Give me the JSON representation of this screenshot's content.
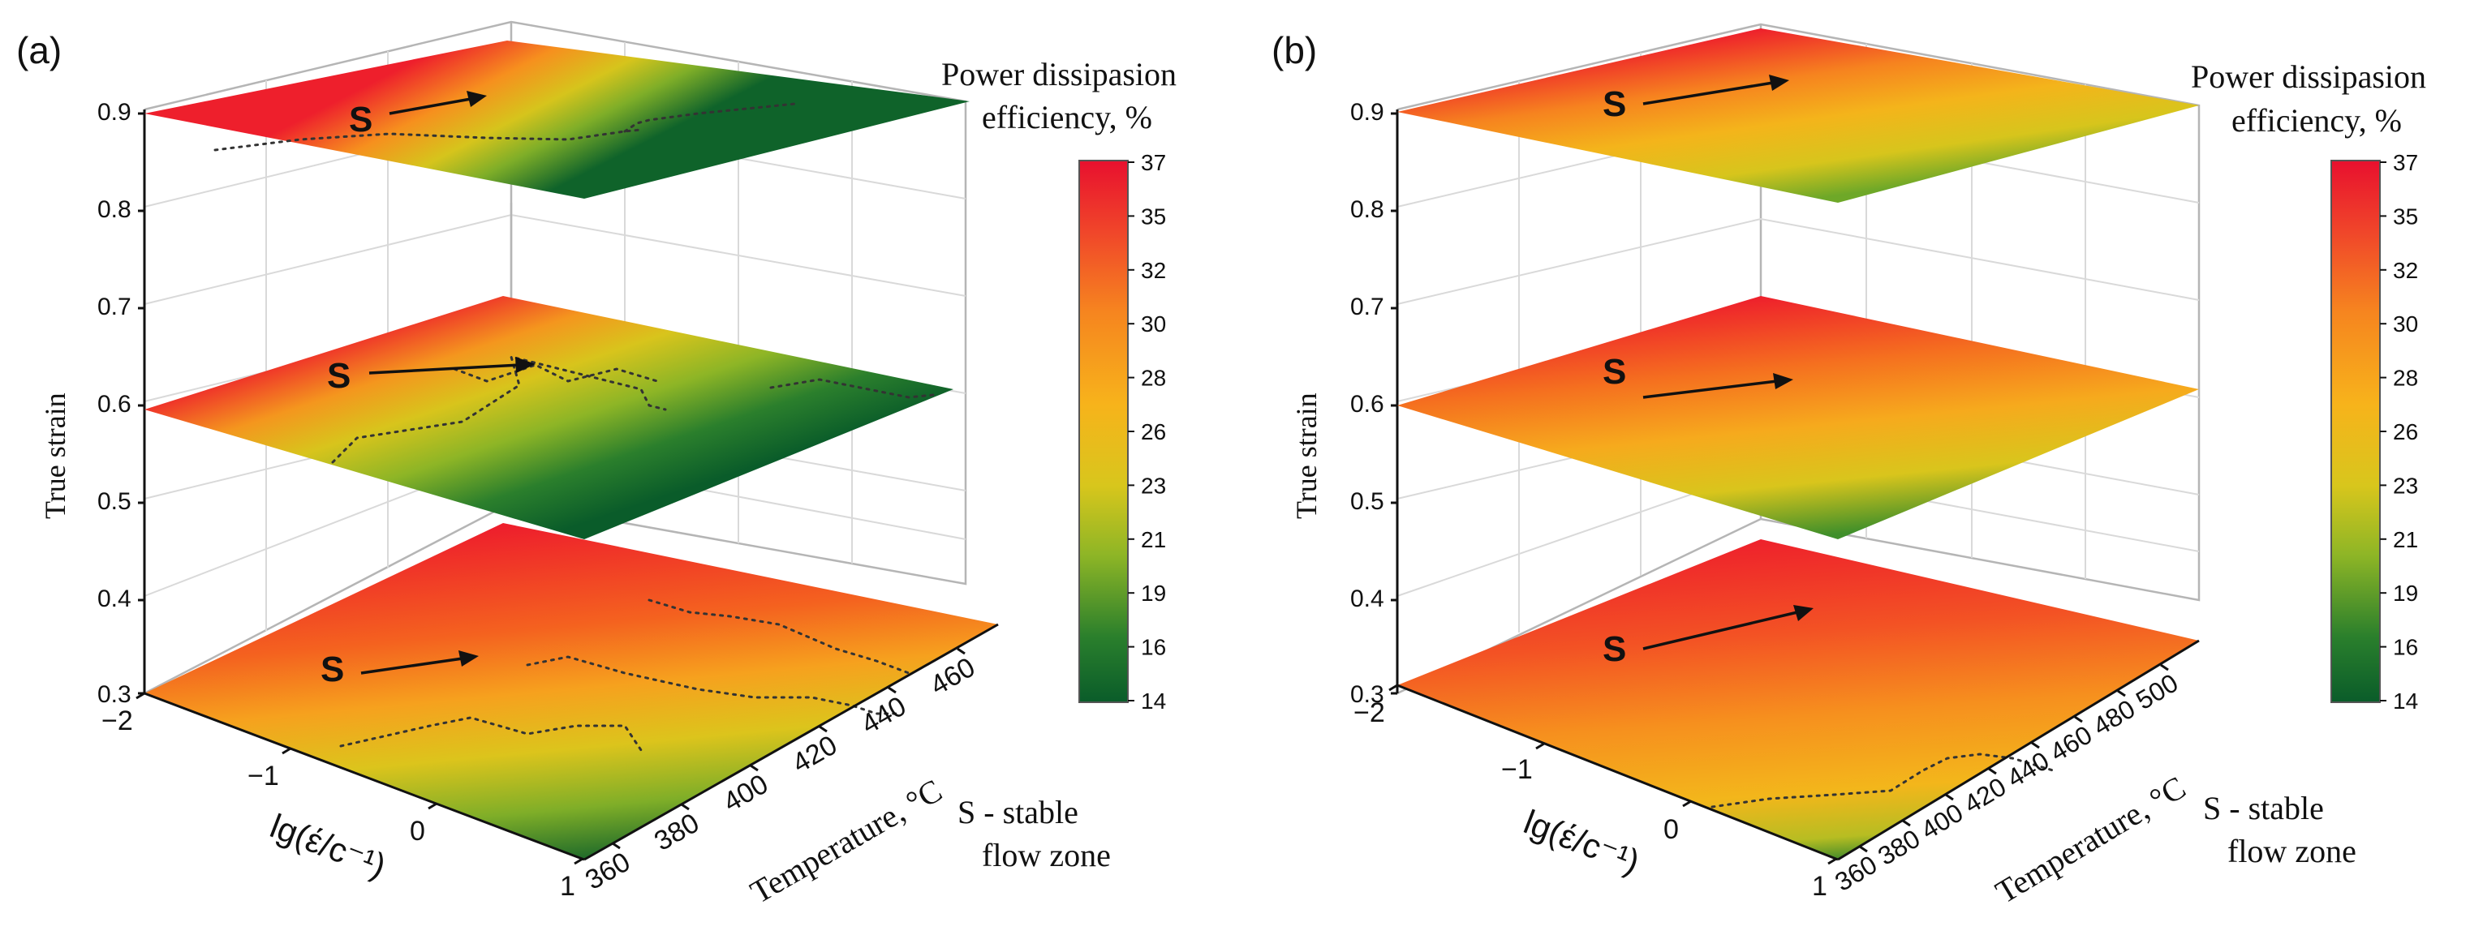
{
  "colors": {
    "scale": [
      "#0a5c2a",
      "#1f7a2c",
      "#4c9a2a",
      "#8db526",
      "#c9c61d",
      "#f2c21a",
      "#f7a81c",
      "#f6851f",
      "#f25c25",
      "#ee2a2b",
      "#e8102e"
    ],
    "contour": "#333333",
    "axis": "#111111"
  },
  "chart_data": [
    {
      "type": "heatmap",
      "panel_label": "(a)",
      "zlabel": "True strain",
      "xlabel": "lg(έ/c⁻¹)",
      "ylabel": "Temperature, °C",
      "z_ticks": [
        "0.3",
        "0.4",
        "0.5",
        "0.6",
        "0.7",
        "0.8",
        "0.9"
      ],
      "x_ticks": [
        "−2",
        "−1",
        "0",
        "1"
      ],
      "y_ticks": [
        "360",
        "380",
        "400",
        "420",
        "440",
        "460"
      ],
      "x_range": [
        -2,
        1
      ],
      "y_range": [
        350,
        475
      ],
      "strain_levels": [
        0.3,
        0.6,
        0.9
      ],
      "colorbar": {
        "title_line1": "Power dissipasion",
        "title_line2": "efficiency, %",
        "ticks": [
          "37",
          "35",
          "32",
          "30",
          "28",
          "26",
          "23",
          "21",
          "19",
          "16",
          "14"
        ],
        "range": [
          14,
          37
        ]
      },
      "zone_marker": "S",
      "note_line1": "S - stable",
      "note_line2": "flow zone"
    },
    {
      "type": "heatmap",
      "panel_label": "(b)",
      "zlabel": "True strain",
      "xlabel": "lg(έ/c⁻¹)",
      "ylabel": "Temperature, °C",
      "z_ticks": [
        "0.3",
        "0.4",
        "0.5",
        "0.6",
        "0.7",
        "0.8",
        "0.9"
      ],
      "x_ticks": [
        "−2",
        "−1",
        "0",
        "1"
      ],
      "y_ticks": [
        "360",
        "380",
        "400",
        "420",
        "440",
        "460",
        "480",
        "500"
      ],
      "x_range": [
        -2,
        1
      ],
      "y_range": [
        350,
        510
      ],
      "strain_levels": [
        0.3,
        0.6,
        0.9
      ],
      "colorbar": {
        "title_line1": "Power dissipasion",
        "title_line2": "efficiency, %",
        "ticks": [
          "37",
          "35",
          "32",
          "30",
          "28",
          "26",
          "23",
          "21",
          "19",
          "16",
          "14"
        ],
        "range": [
          14,
          37
        ]
      },
      "zone_marker": "S",
      "note_line1": "S - stable",
      "note_line2": "flow zone"
    }
  ]
}
